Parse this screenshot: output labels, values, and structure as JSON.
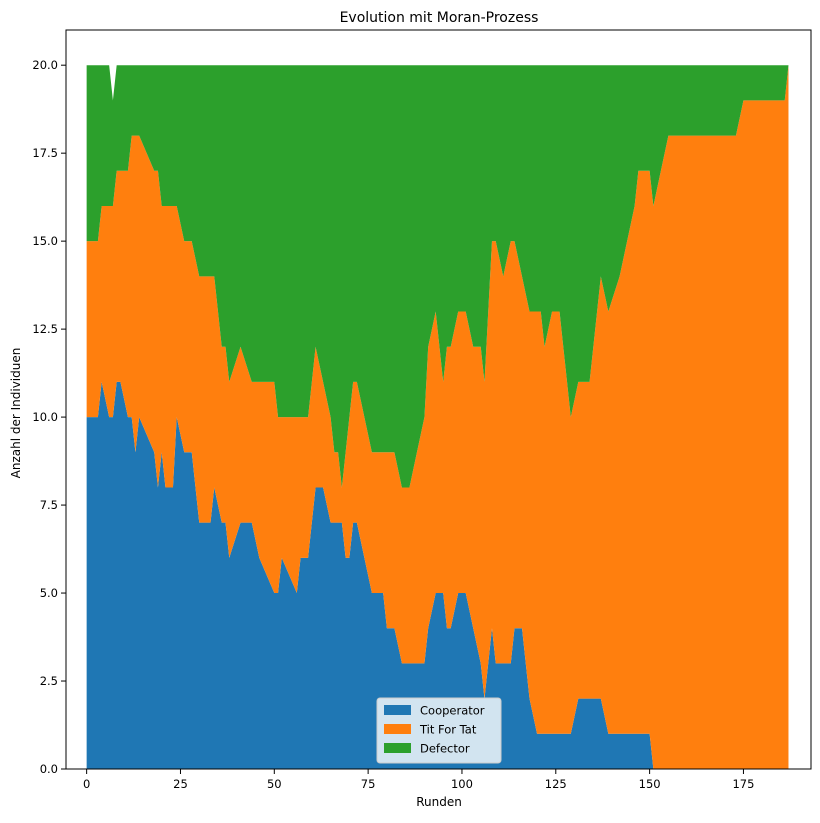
{
  "chart_data": {
    "type": "area",
    "stacked": true,
    "title": "Evolution mit Moran-Prozess",
    "xlabel": "Runden",
    "ylabel": "Anzahl der Individuen",
    "xlim": [
      -5.5,
      193
    ],
    "ylim": [
      0,
      21
    ],
    "xticks": [
      0,
      25,
      50,
      75,
      100,
      125,
      150,
      175
    ],
    "yticks": [
      0.0,
      2.5,
      5.0,
      7.5,
      10.0,
      12.5,
      15.0,
      17.5,
      20.0
    ],
    "ytick_labels": [
      "0.0",
      "2.5",
      "5.0",
      "7.5",
      "10.0",
      "12.5",
      "15.0",
      "17.5",
      "20.0"
    ],
    "grid": false,
    "legend_position": "lower-center",
    "x": [
      0,
      3,
      4,
      6,
      7,
      8,
      9,
      11,
      12,
      13,
      14,
      18,
      19,
      20,
      21,
      23,
      24,
      26,
      28,
      30,
      32,
      33,
      34,
      36,
      37,
      38,
      41,
      44,
      46,
      50,
      51,
      52,
      56,
      57,
      59,
      61,
      63,
      65,
      66,
      67,
      68,
      69,
      70,
      71,
      72,
      74,
      76,
      79,
      80,
      82,
      84,
      86,
      88,
      90,
      91,
      93,
      95,
      96,
      97,
      99,
      101,
      103,
      105,
      106,
      107,
      108,
      109,
      111,
      113,
      114,
      116,
      118,
      120,
      121,
      122,
      124,
      126,
      127,
      128,
      129,
      131,
      134,
      137,
      139,
      142,
      144,
      146,
      147,
      148,
      150,
      151,
      153,
      155,
      160,
      165,
      170,
      172,
      173,
      175,
      180,
      185,
      186,
      187
    ],
    "series": [
      {
        "name": "Cooperator",
        "color": "#1f77b4",
        "values": [
          10,
          10,
          11,
          10,
          10,
          11,
          11,
          10,
          10,
          9,
          10,
          9,
          8,
          9,
          8,
          8,
          10,
          9,
          9,
          7,
          7,
          7,
          8,
          7,
          7,
          6,
          7,
          7,
          6,
          5,
          5,
          6,
          5,
          6,
          6,
          8,
          8,
          7,
          7,
          7,
          7,
          6,
          6,
          7,
          7,
          6,
          5,
          5,
          4,
          4,
          3,
          3,
          3,
          3,
          4,
          5,
          5,
          4,
          4,
          5,
          5,
          4,
          3,
          2,
          3,
          4,
          3,
          3,
          3,
          4,
          4,
          2,
          1,
          1,
          1,
          1,
          1,
          1,
          1,
          1,
          2,
          2,
          2,
          1,
          1,
          1,
          1,
          1,
          1,
          1,
          0,
          0,
          0,
          0,
          0,
          0,
          0,
          0,
          0,
          0,
          0,
          0,
          0
        ]
      },
      {
        "name": "Tit For Tat",
        "color": "#ff7f0e",
        "values": [
          5,
          5,
          5,
          6,
          6,
          6,
          6,
          7,
          8,
          9,
          8,
          8,
          9,
          7,
          8,
          8,
          6,
          6,
          6,
          7,
          7,
          7,
          6,
          5,
          5,
          5,
          5,
          4,
          5,
          6,
          5,
          4,
          5,
          4,
          4,
          4,
          3,
          3,
          2,
          2,
          1,
          3,
          4,
          4,
          4,
          4,
          4,
          4,
          5,
          5,
          5,
          5,
          6,
          7,
          8,
          8,
          6,
          8,
          8,
          8,
          8,
          8,
          9,
          9,
          10,
          11,
          12,
          11,
          12,
          11,
          10,
          11,
          12,
          12,
          11,
          12,
          12,
          11,
          10,
          9,
          9,
          9,
          12,
          12,
          13,
          14,
          15,
          16,
          16,
          16,
          16,
          17,
          18,
          18,
          18,
          18,
          18,
          18,
          19,
          19,
          19,
          19,
          20
        ]
      },
      {
        "name": "Defector",
        "color": "#2ca02c",
        "values": [
          5,
          5,
          4,
          4,
          3,
          3,
          3,
          3,
          2,
          2,
          2,
          3,
          3,
          4,
          4,
          4,
          4,
          5,
          5,
          6,
          6,
          6,
          6,
          8,
          8,
          9,
          8,
          9,
          9,
          9,
          10,
          10,
          10,
          10,
          10,
          8,
          9,
          10,
          11,
          11,
          12,
          11,
          10,
          9,
          9,
          10,
          11,
          11,
          11,
          11,
          12,
          12,
          11,
          10,
          8,
          7,
          9,
          8,
          8,
          7,
          7,
          8,
          8,
          9,
          7,
          5,
          5,
          6,
          5,
          5,
          6,
          7,
          7,
          7,
          8,
          7,
          7,
          8,
          9,
          10,
          9,
          9,
          6,
          7,
          6,
          5,
          4,
          3,
          3,
          3,
          4,
          3,
          2,
          2,
          2,
          2,
          2,
          2,
          1,
          1,
          1,
          1,
          0
        ]
      }
    ]
  }
}
